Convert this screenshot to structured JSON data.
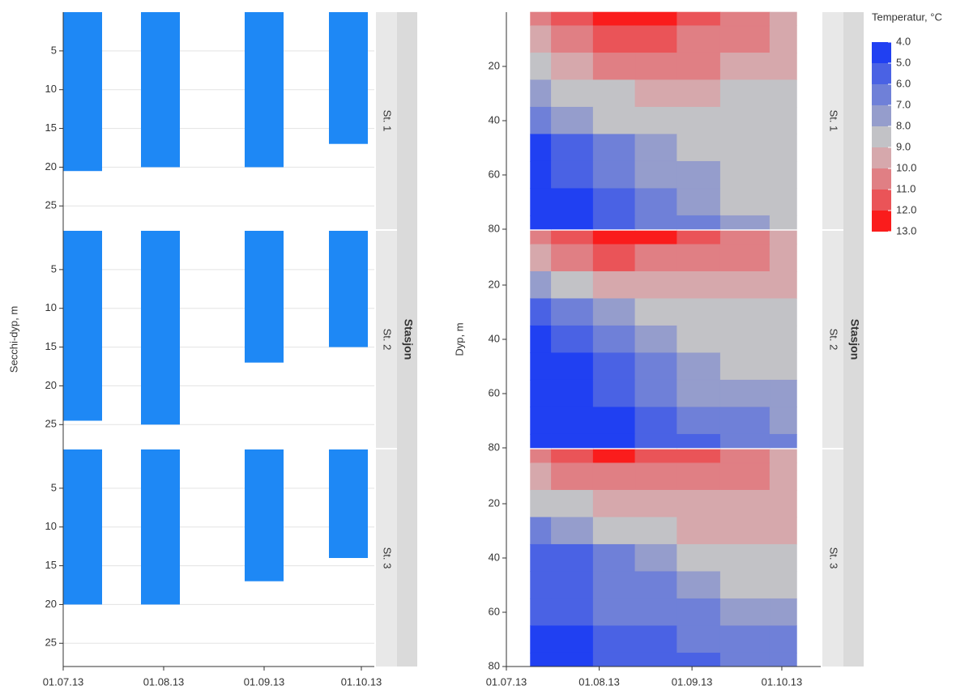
{
  "chart_data": [
    {
      "type": "bar",
      "y_label": "Secchi-dyp, m",
      "facet_label": "Stasjon",
      "xlim": [
        "01.07.13",
        "05.10.13"
      ],
      "xticks": [
        "01.07.13",
        "01.08.13",
        "01.09.13",
        "01.10.13"
      ],
      "ylim": [
        0,
        28
      ],
      "yticks": [
        5,
        10,
        15,
        20,
        25
      ],
      "y_inverted": true,
      "grid": true,
      "color": "#1e88f5",
      "facets": [
        {
          "name": "St. 1",
          "x": [
            "07.07.13",
            "31.07.13",
            "01.09.13",
            "27.09.13"
          ],
          "values": [
            20.5,
            20,
            20,
            17
          ]
        },
        {
          "name": "St. 2",
          "x": [
            "07.07.13",
            "31.07.13",
            "01.09.13",
            "27.09.13"
          ],
          "values": [
            24.5,
            25,
            17,
            15
          ]
        },
        {
          "name": "St. 3",
          "x": [
            "07.07.13",
            "31.07.13",
            "01.09.13",
            "27.09.13"
          ],
          "values": [
            20,
            20,
            17,
            14
          ]
        }
      ]
    },
    {
      "type": "contour",
      "y_label": "Dyp, m",
      "facet_label": "Stasjon",
      "legend_title": "Temperatur, °C",
      "xlim": [
        "01.07.13",
        "14.10.13"
      ],
      "xticks": [
        "01.07.13",
        "01.08.13",
        "01.09.13",
        "01.10.13"
      ],
      "ylim": [
        0,
        80
      ],
      "yticks": [
        20,
        40,
        60,
        80
      ],
      "y_inverted": true,
      "grid": false,
      "levels": [
        {
          "value": 4,
          "label": "4.0"
        },
        {
          "value": 5,
          "label": "5.0"
        },
        {
          "value": 6,
          "label": "6.0"
        },
        {
          "value": 7,
          "label": "7.0"
        },
        {
          "value": 8,
          "label": "8.0"
        },
        {
          "value": 9,
          "label": "9.0"
        },
        {
          "value": 10,
          "label": "10.0"
        },
        {
          "value": 11,
          "label": "11.0"
        },
        {
          "value": 12,
          "label": "12.0"
        },
        {
          "value": 13,
          "label": "13.0"
        }
      ],
      "colors": [
        "#2040f2",
        "#4a62e4",
        "#6f80d8",
        "#959dcc",
        "#c2c2c6",
        "#d6a8ac",
        "#e07f84",
        "#ea5458",
        "#fa1c1c"
      ],
      "x": [
        "09.07.13",
        "23.07.13",
        "06.08.13",
        "20.08.13",
        "03.09.13",
        "18.09.13",
        "06.10.13"
      ],
      "depths": [
        0,
        10,
        20,
        30,
        40,
        50,
        60,
        70,
        80
      ],
      "facets": [
        {
          "name": "St. 1",
          "z": [
            [
              10.5,
              11.5,
              12.5,
              12.5,
              11.5,
              10.5,
              9.5
            ],
            [
              9.5,
              10.5,
              11.5,
              11,
              10.5,
              10.5,
              9.5
            ],
            [
              8.5,
              9.5,
              10,
              10.5,
              10.2,
              9.5,
              9.2
            ],
            [
              7.5,
              8.5,
              8.8,
              9.3,
              9.2,
              8.8,
              8.5
            ],
            [
              6.5,
              7.2,
              8,
              8.5,
              8.6,
              8.5,
              8.5
            ],
            [
              4.5,
              5.8,
              6.8,
              7.8,
              8.5,
              8.5,
              8.5
            ],
            [
              4.5,
              5,
              6.2,
              7,
              7.8,
              8.5,
              8.5
            ],
            [
              4.5,
              4.8,
              5.8,
              6.5,
              7.2,
              8,
              8.5
            ],
            [
              4.5,
              4.8,
              5.5,
              6,
              6.8,
              7.5,
              8.2
            ]
          ]
        },
        {
          "name": "St. 2",
          "z": [
            [
              10.5,
              11.5,
              12.5,
              12,
              11,
              10.5,
              9.8
            ],
            [
              9.5,
              10.2,
              11,
              10.8,
              10.5,
              10,
              9.5
            ],
            [
              7.5,
              8.5,
              9.2,
              9.5,
              9.5,
              9.6,
              9.4
            ],
            [
              5.5,
              6.5,
              7.8,
              8.6,
              8.8,
              8.8,
              8.8
            ],
            [
              4.5,
              5,
              6.5,
              7.8,
              8.5,
              8.6,
              8.5
            ],
            [
              4.5,
              4.8,
              5.5,
              6.8,
              7.8,
              8.2,
              8.2
            ],
            [
              4.5,
              4.6,
              5,
              6,
              7,
              7.6,
              7.8
            ],
            [
              4.5,
              4.5,
              4.8,
              5.5,
              6.2,
              6.8,
              7.2
            ],
            [
              4.5,
              4.5,
              4.8,
              5.3,
              5.8,
              6.4,
              6.8
            ]
          ]
        },
        {
          "name": "St. 3",
          "z": [
            [
              10.5,
              11.5,
              12.5,
              11.5,
              11.2,
              10.5,
              9.8
            ],
            [
              9.5,
              10.2,
              10.8,
              10.8,
              10.5,
              10,
              9.5
            ],
            [
              8,
              8.8,
              9.3,
              9.5,
              9.6,
              9.6,
              9.5
            ],
            [
              6.8,
              7.5,
              8.2,
              8.8,
              9,
              9,
              9
            ],
            [
              5.5,
              5.8,
              6.5,
              7.5,
              8.5,
              8.6,
              8.5
            ],
            [
              5.5,
              5.8,
              6,
              6.5,
              7.8,
              8.2,
              8.3
            ],
            [
              5.5,
              5.8,
              6,
              6.2,
              6.8,
              7.5,
              7.8
            ],
            [
              4.5,
              4.8,
              5.5,
              5.8,
              6.2,
              6.5,
              6.8
            ],
            [
              4.5,
              4.6,
              5.2,
              5.5,
              5.8,
              6,
              6.2
            ]
          ]
        }
      ]
    }
  ]
}
